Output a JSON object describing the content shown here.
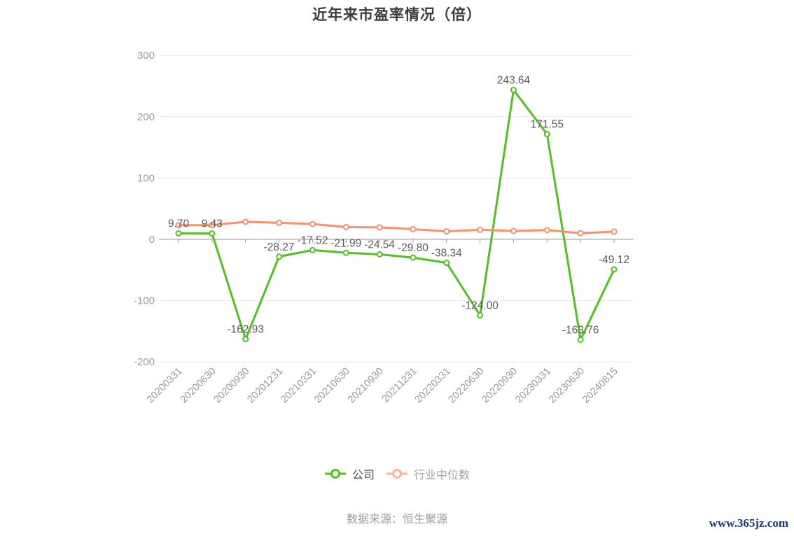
{
  "title": "近年来市盈率情况（倍）",
  "source_note": "数据来源：恒生聚源",
  "watermark": "www.365jz.com",
  "colors": {
    "company": "#53c021",
    "industry": "#f8916b",
    "industry_legend": "#f9b496",
    "grid": "#e8ebf2",
    "axis": "#999999",
    "axis_label": "#999999",
    "data_label": "#595959",
    "title_text": "#3c3c3c"
  },
  "legend": [
    {
      "label": "公司"
    },
    {
      "label": "行业中位数"
    }
  ],
  "chart_data": {
    "type": "line",
    "categories": [
      "20200331",
      "20200630",
      "20200930",
      "20201231",
      "20210331",
      "20210630",
      "20210930",
      "20211231",
      "20220331",
      "20220630",
      "20220930",
      "20230331",
      "20230630",
      "20240815"
    ],
    "series": [
      {
        "name": "公司",
        "color_key": "company",
        "values": [
          9.7,
          9.43,
          -162.93,
          -28.27,
          -17.52,
          -21.99,
          -24.54,
          -29.8,
          -38.34,
          -124.0,
          243.64,
          171.55,
          -163.76,
          -49.12
        ],
        "label_strings": [
          "9.70",
          "9.43",
          "-162.93",
          "-28.27",
          "-17.52",
          "-21.99",
          "-24.54",
          "-29.80",
          "-38.34",
          "-124.00",
          "243.64",
          "171.55",
          "-163.76",
          "-49.12"
        ]
      },
      {
        "name": "行业中位数",
        "color_key": "industry",
        "values": [
          23.0,
          23.2,
          28.5,
          27.0,
          25.0,
          20.0,
          19.5,
          16.5,
          13.0,
          15.5,
          13.5,
          15.0,
          10.0,
          12.5
        ],
        "label_strings": null
      }
    ],
    "ylim": [
      -200,
      300
    ],
    "yticks": [
      300,
      200,
      100,
      0,
      -100,
      -200
    ],
    "grid": true,
    "legend_position": "bottom",
    "xlabel": "",
    "ylabel": ""
  }
}
